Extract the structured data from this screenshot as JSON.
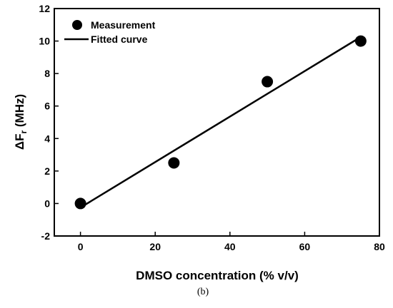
{
  "chart_data": {
    "type": "scatter",
    "xlabel": "DMSO concentration (% v/v)",
    "ylabel": {
      "delta": "Δ",
      "main": "F",
      "sub": "r",
      "unit": " (MHz)"
    },
    "xlim": [
      -7,
      80
    ],
    "ylim": [
      -2,
      12
    ],
    "xticks": [
      0,
      20,
      40,
      60,
      80
    ],
    "yticks": [
      -2,
      0,
      2,
      4,
      6,
      8,
      10,
      12
    ],
    "series": [
      {
        "name": "Measurement",
        "kind": "points",
        "color": "#000000",
        "x": [
          0,
          25,
          50,
          75
        ],
        "y": [
          0,
          2.5,
          7.5,
          10
        ]
      },
      {
        "name": "Fitted curve",
        "kind": "line",
        "color": "#000000",
        "x": [
          0,
          75
        ],
        "y": [
          -0.25,
          10.25
        ]
      }
    ],
    "legend": {
      "position": "top-left",
      "entries": [
        "Measurement",
        "Fitted curve"
      ]
    },
    "grid": false
  },
  "caption": "(b)"
}
